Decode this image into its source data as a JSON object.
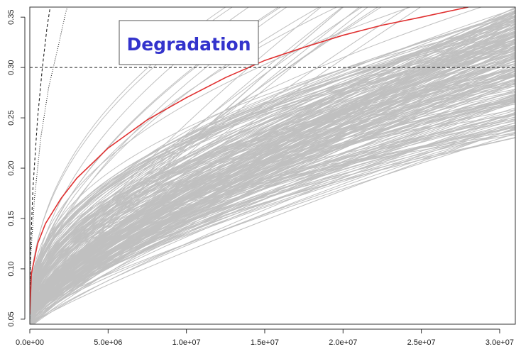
{
  "chart_data": {
    "type": "line",
    "title": "",
    "xlabel": "",
    "ylabel": "",
    "xlim": [
      0,
      31000000
    ],
    "ylim": [
      0.045,
      0.36
    ],
    "x_ticks": [
      0,
      5000000,
      10000000,
      15000000,
      20000000,
      25000000,
      30000000
    ],
    "x_tick_labels": [
      "0.0e+00",
      "5.0e+06",
      "1.0e+07",
      "1.5e+07",
      "2.0e+07",
      "2.5e+07",
      "3.0e+07"
    ],
    "y_ticks": [
      0.05,
      0.1,
      0.15,
      0.2,
      0.25,
      0.3,
      0.35
    ],
    "y_tick_labels": [
      "0.05",
      "0.10",
      "0.15",
      "0.20",
      "0.25",
      "0.30",
      "0.35"
    ],
    "grid": false,
    "annotation": {
      "text": "Degradation",
      "color": "#3333cc"
    },
    "threshold": {
      "y": 0.3,
      "style": "dashed",
      "color": "#222222"
    },
    "colors": {
      "simulated_paths": "#c0c0c0",
      "mean_path": "#e03030",
      "bounds": "#222222"
    },
    "series": [
      {
        "role": "mean-path",
        "style": "solid",
        "color": "#e03030",
        "x": [
          0,
          100000,
          500000,
          1000000,
          2000000,
          3000000,
          5000000,
          7500000,
          10000000,
          12500000,
          15000000,
          17500000,
          20000000,
          22500000,
          25000000,
          28000000
        ],
        "y": [
          0.055,
          0.095,
          0.125,
          0.145,
          0.17,
          0.19,
          0.22,
          0.248,
          0.27,
          0.29,
          0.307,
          0.32,
          0.332,
          0.342,
          0.35,
          0.36
        ]
      },
      {
        "role": "upper-bound-dashed",
        "style": "dashed",
        "color": "#222222",
        "x": [
          0,
          50000,
          200000,
          500000,
          800000,
          1100000,
          1300000
        ],
        "y": [
          0.05,
          0.12,
          0.18,
          0.25,
          0.3,
          0.34,
          0.36
        ]
      },
      {
        "role": "upper-bound-dotted",
        "style": "dotted",
        "color": "#222222",
        "x": [
          0,
          50000,
          300000,
          700000,
          1200000,
          1800000,
          2300000,
          2400000
        ],
        "y": [
          0.05,
          0.11,
          0.17,
          0.23,
          0.28,
          0.32,
          0.355,
          0.36
        ]
      }
    ],
    "simulated_paths": {
      "count": 260,
      "start_y": 0.05,
      "y_at_x_max_range": [
        0.23,
        0.36
      ],
      "color": "#c0c0c0"
    }
  }
}
